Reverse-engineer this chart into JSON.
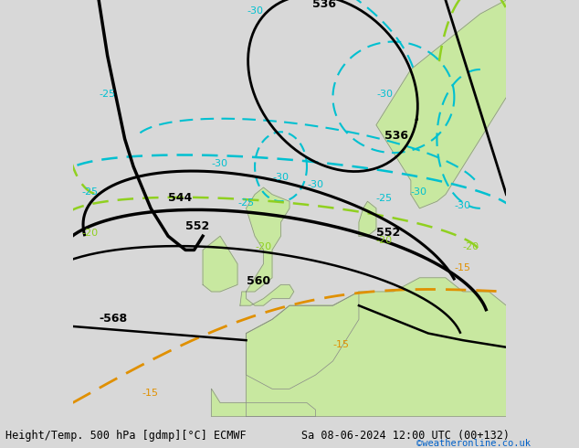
{
  "title_left": "Height/Temp. 500 hPa [gdmp][°C] ECMWF",
  "title_right": "Sa 08-06-2024 12:00 UTC (00+132)",
  "credit": "©weatheronline.co.uk",
  "bg_color": "#d8d8d8",
  "land_color": "#c8e8a0",
  "coast_color": "#888888",
  "black_color": "#000000",
  "cyan_color": "#00c0d0",
  "green_color": "#90d020",
  "orange_color": "#e09000",
  "label_fs": 8,
  "title_fs": 8.5,
  "credit_fs": 7.5,
  "xlim": [
    -25,
    25
  ],
  "ylim": [
    42,
    72
  ]
}
